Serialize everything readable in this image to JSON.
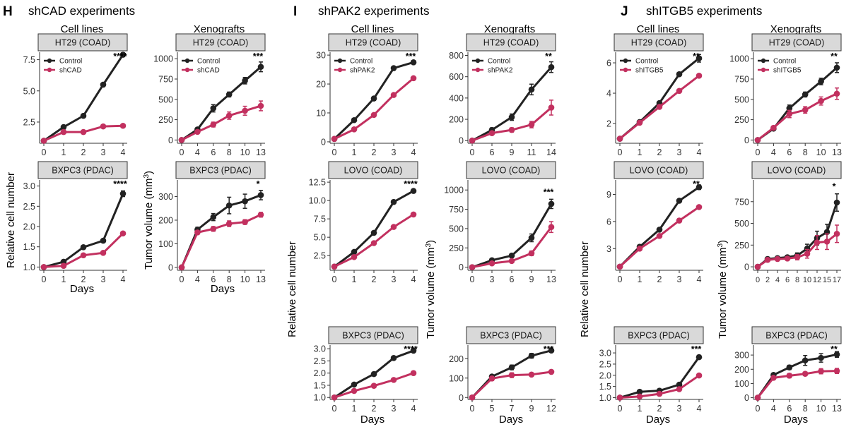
{
  "colors": {
    "control": "#222222",
    "knockdown": "#c2305f",
    "strip_fill": "#d9d9d9",
    "axis": "#333333"
  },
  "chart_data": {
    "type": "line",
    "panel_letters": [
      "H",
      "I",
      "J"
    ],
    "panel_titles": [
      "shCAD experiments",
      "shPAK2 experiments",
      "shITGB5 experiments"
    ],
    "column_headers": [
      "Cell lines",
      "Xenografts",
      "Cell lines",
      "Xenografts",
      "Cell lines",
      "Xenografts"
    ],
    "xlabel": "Days",
    "ylabel_cells": "Relative cell number",
    "ylabel_xeno_prefix": "Tumor volume (mm",
    "ylabel_xeno_sup": "3",
    "ylabel_xeno_suffix": ")",
    "legend_control": "Control",
    "panels": [
      {
        "id": "H-cell-HT29",
        "strip": "HT29 (COAD)",
        "sig": "****",
        "legend": "shCAD",
        "x": [
          "0",
          "1",
          "2",
          "3",
          "4"
        ],
        "ylim": [
          0.8,
          8.1
        ],
        "yticks": [
          2.5,
          5.0,
          7.5
        ],
        "ytick_labels": [
          "2.5",
          "5.0",
          "7.5"
        ],
        "series": [
          {
            "name": "Control",
            "values": [
              1.0,
              2.1,
              3.0,
              5.5,
              7.9
            ],
            "err": [
              0,
              0.05,
              0.05,
              0.1,
              0.15
            ]
          },
          {
            "name": "shCAD",
            "values": [
              1.0,
              1.7,
              1.7,
              2.15,
              2.2
            ],
            "err": [
              0,
              0.05,
              0.05,
              0.05,
              0.05
            ]
          }
        ]
      },
      {
        "id": "H-xeno-HT29",
        "strip": "HT29 (COAD)",
        "sig": "***",
        "legend": "shCAD",
        "x": [
          "0",
          "4",
          "6",
          "8",
          "10",
          "13"
        ],
        "ylim": [
          -40,
          1080
        ],
        "yticks": [
          0,
          250,
          500,
          750,
          1000
        ],
        "ytick_labels": [
          "0",
          "250",
          "500",
          "750",
          "1000"
        ],
        "series": [
          {
            "name": "Control",
            "values": [
              0,
              130,
              390,
              560,
              730,
              900
            ],
            "err": [
              0,
              20,
              45,
              30,
              40,
              60
            ]
          },
          {
            "name": "shCAD",
            "values": [
              0,
              100,
              190,
              300,
              360,
              420
            ],
            "err": [
              0,
              15,
              30,
              45,
              55,
              60
            ]
          }
        ]
      },
      {
        "id": "H-cell-BXPC3",
        "strip": "BXPC3 (PDAC)",
        "sig": "****",
        "x": [
          "0",
          "1",
          "2",
          "3",
          "4"
        ],
        "ylim": [
          0.92,
          3.15
        ],
        "yticks": [
          1.0,
          1.5,
          2.0,
          2.5,
          3.0
        ],
        "ytick_labels": [
          "1.0",
          "1.5",
          "2.0",
          "2.5",
          "3.0"
        ],
        "series": [
          {
            "name": "Control",
            "values": [
              1.0,
              1.13,
              1.49,
              1.65,
              2.81
            ],
            "err": [
              0,
              0.02,
              0.03,
              0.03,
              0.07
            ]
          },
          {
            "name": "shCAD",
            "values": [
              1.0,
              1.03,
              1.29,
              1.35,
              1.83
            ],
            "err": [
              0,
              0.02,
              0.03,
              0.03,
              0.03
            ]
          }
        ]
      },
      {
        "id": "H-xeno-BXPC3",
        "strip": "BXPC3 (PDAC)",
        "sig": "*",
        "x": [
          "0",
          "4",
          "6",
          "8",
          "10",
          "13"
        ],
        "ylim": [
          -12,
          370
        ],
        "yticks": [
          0,
          100,
          200,
          300
        ],
        "ytick_labels": [
          "0",
          "100",
          "200",
          "300"
        ],
        "series": [
          {
            "name": "Control",
            "values": [
              0,
              160,
              213,
              262,
              280,
              306
            ],
            "err": [
              0,
              10,
              15,
              35,
              30,
              20
            ]
          },
          {
            "name": "shCAD",
            "values": [
              0,
              148,
              163,
              185,
              192,
              223
            ],
            "err": [
              0,
              8,
              10,
              12,
              10,
              10
            ]
          }
        ]
      },
      {
        "id": "I-cell-HT29",
        "strip": "HT29 (COAD)",
        "sig": "***",
        "legend": "shPAK2",
        "x": [
          "0",
          "1",
          "2",
          "3",
          "4"
        ],
        "ylim": [
          -0.5,
          31
        ],
        "yticks": [
          0,
          10,
          20,
          30
        ],
        "ytick_labels": [
          "0",
          "10",
          "20",
          "30"
        ],
        "series": [
          {
            "name": "Control",
            "values": [
              1.0,
              7.5,
              15.0,
              25.5,
              27.5
            ],
            "err": [
              0,
              0.3,
              0.3,
              0.3,
              0.5
            ]
          },
          {
            "name": "shPAK2",
            "values": [
              1.0,
              4.3,
              9.3,
              16.2,
              22.0
            ],
            "err": [
              0,
              0.3,
              0.3,
              0.3,
              0.3
            ]
          }
        ]
      },
      {
        "id": "I-xeno-HT29",
        "strip": "HT29 (COAD)",
        "sig": "**",
        "legend": "shPAK2",
        "x": [
          "0",
          "6",
          "9",
          "11",
          "14"
        ],
        "ylim": [
          -25,
          830
        ],
        "yticks": [
          0,
          200,
          400,
          600,
          800
        ],
        "ytick_labels": [
          "0",
          "200",
          "400",
          "600",
          "800"
        ],
        "series": [
          {
            "name": "Control",
            "values": [
              0,
              100,
              220,
              480,
              690
            ],
            "err": [
              0,
              20,
              30,
              50,
              50
            ]
          },
          {
            "name": "shPAK2",
            "values": [
              0,
              70,
              100,
              150,
              310
            ],
            "err": [
              0,
              15,
              20,
              30,
              70
            ]
          }
        ]
      },
      {
        "id": "I-cell-LOVO",
        "strip": "LOVO (COAD)",
        "sig": "****",
        "x": [
          "0",
          "1",
          "2",
          "3",
          "4"
        ],
        "ylim": [
          0.5,
          12.8
        ],
        "yticks": [
          2.5,
          5.0,
          7.5,
          10.0,
          12.5
        ],
        "ytick_labels": [
          "2.5",
          "5.0",
          "7.5",
          "10.0",
          "12.5"
        ],
        "series": [
          {
            "name": "Control",
            "values": [
              1.0,
              3.0,
              5.6,
              9.8,
              11.3
            ],
            "err": [
              0,
              0.1,
              0.1,
              0.1,
              0.15
            ]
          },
          {
            "name": "shPAK2",
            "values": [
              1.0,
              2.3,
              4.2,
              6.4,
              8.1
            ],
            "err": [
              0,
              0.1,
              0.1,
              0.1,
              0.1
            ]
          }
        ]
      },
      {
        "id": "I-xeno-LOVO",
        "strip": "LOVO (COAD)",
        "sig": "***",
        "x": [
          "0",
          "3",
          "6",
          "9",
          "13"
        ],
        "ylim": [
          -40,
          1130
        ],
        "yticks": [
          0,
          250,
          500,
          750,
          1000
        ],
        "ytick_labels": [
          "0",
          "250",
          "500",
          "750",
          "1000"
        ],
        "series": [
          {
            "name": "Control",
            "values": [
              0,
              90,
              150,
              380,
              820
            ],
            "err": [
              0,
              20,
              25,
              50,
              60
            ]
          },
          {
            "name": "shPAK2",
            "values": [
              0,
              50,
              80,
              180,
              520
            ],
            "err": [
              0,
              15,
              20,
              30,
              70
            ]
          }
        ]
      },
      {
        "id": "I-cell-BXPC3",
        "strip": "BXPC3 (PDAC)",
        "sig": "****",
        "x": [
          "0",
          "1",
          "2",
          "3",
          "4"
        ],
        "ylim": [
          0.92,
          3.15
        ],
        "yticks": [
          1.0,
          1.5,
          2.0,
          2.5,
          3.0
        ],
        "ytick_labels": [
          "1.0",
          "1.5",
          "2.0",
          "2.5",
          "3.0"
        ],
        "series": [
          {
            "name": "Control",
            "values": [
              1.0,
              1.53,
              1.96,
              2.62,
              2.92
            ],
            "err": [
              0,
              0.02,
              0.02,
              0.03,
              0.05
            ]
          },
          {
            "name": "shPAK2",
            "values": [
              1.0,
              1.27,
              1.48,
              1.72,
              2.0
            ],
            "err": [
              0,
              0.02,
              0.02,
              0.02,
              0.04
            ]
          }
        ]
      },
      {
        "id": "I-xeno-BXPC3",
        "strip": "BXPC3 (PDAC)",
        "sig": "***",
        "x": [
          "0",
          "5",
          "7",
          "9",
          "12"
        ],
        "ylim": [
          -10,
          270
        ],
        "yticks": [
          0,
          100,
          200
        ],
        "ytick_labels": [
          "0",
          "100",
          "200"
        ],
        "series": [
          {
            "name": "Control",
            "values": [
              0,
              108,
              155,
              215,
              242
            ],
            "err": [
              0,
              8,
              12,
              12,
              8
            ]
          },
          {
            "name": "shPAK2",
            "values": [
              0,
              98,
              115,
              118,
              132
            ],
            "err": [
              0,
              10,
              12,
              8,
              5
            ]
          }
        ]
      },
      {
        "id": "J-cell-HT29",
        "strip": "HT29 (COAD)",
        "sig": "**",
        "legend": "shITGB5",
        "x": [
          "0",
          "1",
          "2",
          "3",
          "4"
        ],
        "ylim": [
          0.7,
          6.7
        ],
        "yticks": [
          2,
          4,
          6
        ],
        "ytick_labels": [
          "2",
          "4",
          "6"
        ],
        "series": [
          {
            "name": "Control",
            "values": [
              1.0,
              2.1,
              3.35,
              5.25,
              6.3
            ],
            "err": [
              0,
              0.05,
              0.1,
              0.1,
              0.25
            ]
          },
          {
            "name": "shITGB5",
            "values": [
              1.0,
              2.05,
              3.1,
              4.15,
              5.15
            ],
            "err": [
              0,
              0.05,
              0.1,
              0.1,
              0.1
            ]
          }
        ]
      },
      {
        "id": "J-xeno-HT29",
        "strip": "HT29 (COAD)",
        "sig": "**",
        "legend": "shITGB5",
        "x": [
          "0",
          "4",
          "6",
          "8",
          "10",
          "13"
        ],
        "ylim": [
          -40,
          1080
        ],
        "yticks": [
          0,
          250,
          500,
          750,
          1000
        ],
        "ytick_labels": [
          "0",
          "250",
          "500",
          "750",
          "1000"
        ],
        "series": [
          {
            "name": "Control",
            "values": [
              0,
              140,
              390,
              560,
              720,
              890
            ],
            "err": [
              0,
              20,
              40,
              30,
              40,
              60
            ]
          },
          {
            "name": "shITGB5",
            "values": [
              0,
              150,
              320,
              370,
              480,
              570
            ],
            "err": [
              0,
              20,
              45,
              40,
              50,
              70
            ]
          }
        ]
      },
      {
        "id": "J-cell-LOVO",
        "strip": "LOVO (COAD)",
        "sig": "**",
        "x": [
          "0",
          "1",
          "2",
          "3",
          "4"
        ],
        "ylim": [
          0.6,
          10.6
        ],
        "yticks": [
          3,
          6,
          9
        ],
        "ytick_labels": [
          "3",
          "6",
          "9"
        ],
        "series": [
          {
            "name": "Control",
            "values": [
              1.0,
              3.2,
              5.1,
              8.3,
              9.8
            ],
            "err": [
              0,
              0.1,
              0.1,
              0.15,
              0.25
            ]
          },
          {
            "name": "shITGB5",
            "values": [
              1.0,
              3.0,
              4.4,
              6.1,
              7.6
            ],
            "err": [
              0,
              0.1,
              0.1,
              0.2,
              0.1
            ]
          }
        ]
      },
      {
        "id": "J-xeno-LOVO",
        "strip": "LOVO (COAD)",
        "sig": "*",
        "x": [
          "0",
          "2",
          "4",
          "6",
          "8",
          "10",
          "12",
          "15",
          "17"
        ],
        "x_labels_compact": [
          "0",
          "2",
          "4",
          "6",
          "8",
          "10",
          "12",
          "15",
          "17"
        ],
        "ylim": [
          -40,
          1000
        ],
        "yticks": [
          0,
          250,
          500,
          750
        ],
        "ytick_labels": [
          "0",
          "250",
          "500",
          "750"
        ],
        "series": [
          {
            "name": "Control",
            "values": [
              0,
              90,
              100,
              110,
              130,
              210,
              330,
              400,
              740
            ],
            "err": [
              0,
              20,
              20,
              20,
              30,
              50,
              80,
              90,
              100
            ]
          },
          {
            "name": "shITGB5",
            "values": [
              0,
              80,
              90,
              95,
              110,
              150,
              280,
              290,
              380
            ],
            "err": [
              0,
              20,
              20,
              20,
              30,
              50,
              80,
              90,
              100
            ]
          }
        ]
      },
      {
        "id": "J-cell-BXPC3",
        "strip": "BXPC3 (PDAC)",
        "sig": "***",
        "x": [
          "0",
          "1",
          "2",
          "3",
          "4"
        ],
        "ylim": [
          0.92,
          3.35
        ],
        "yticks": [
          1.0,
          1.5,
          2.0,
          2.5,
          3.0
        ],
        "ytick_labels": [
          "1.0",
          "1.5",
          "2.0",
          "2.5",
          "3.0"
        ],
        "series": [
          {
            "name": "Control",
            "values": [
              1.0,
              1.26,
              1.31,
              1.58,
              2.81
            ],
            "err": [
              0,
              0.02,
              0.02,
              0.03,
              0.08
            ]
          },
          {
            "name": "shITGB5",
            "values": [
              1.0,
              1.05,
              1.17,
              1.38,
              1.99
            ],
            "err": [
              0,
              0.02,
              0.02,
              0.02,
              0.03
            ]
          }
        ]
      },
      {
        "id": "J-xeno-BXPC3",
        "strip": "BXPC3 (PDAC)",
        "sig": "**",
        "x": [
          "0",
          "4",
          "6",
          "8",
          "10",
          "13"
        ],
        "ylim": [
          -12,
          370
        ],
        "yticks": [
          0,
          100,
          200,
          300
        ],
        "ytick_labels": [
          "0",
          "100",
          "200",
          "300"
        ],
        "series": [
          {
            "name": "Control",
            "values": [
              0,
              160,
              213,
              262,
              280,
              304
            ],
            "err": [
              0,
              10,
              15,
              35,
              30,
              20
            ]
          },
          {
            "name": "shITGB5",
            "values": [
              0,
              140,
              155,
              168,
              186,
              188
            ],
            "err": [
              0,
              8,
              15,
              12,
              18,
              18
            ]
          }
        ]
      }
    ]
  }
}
